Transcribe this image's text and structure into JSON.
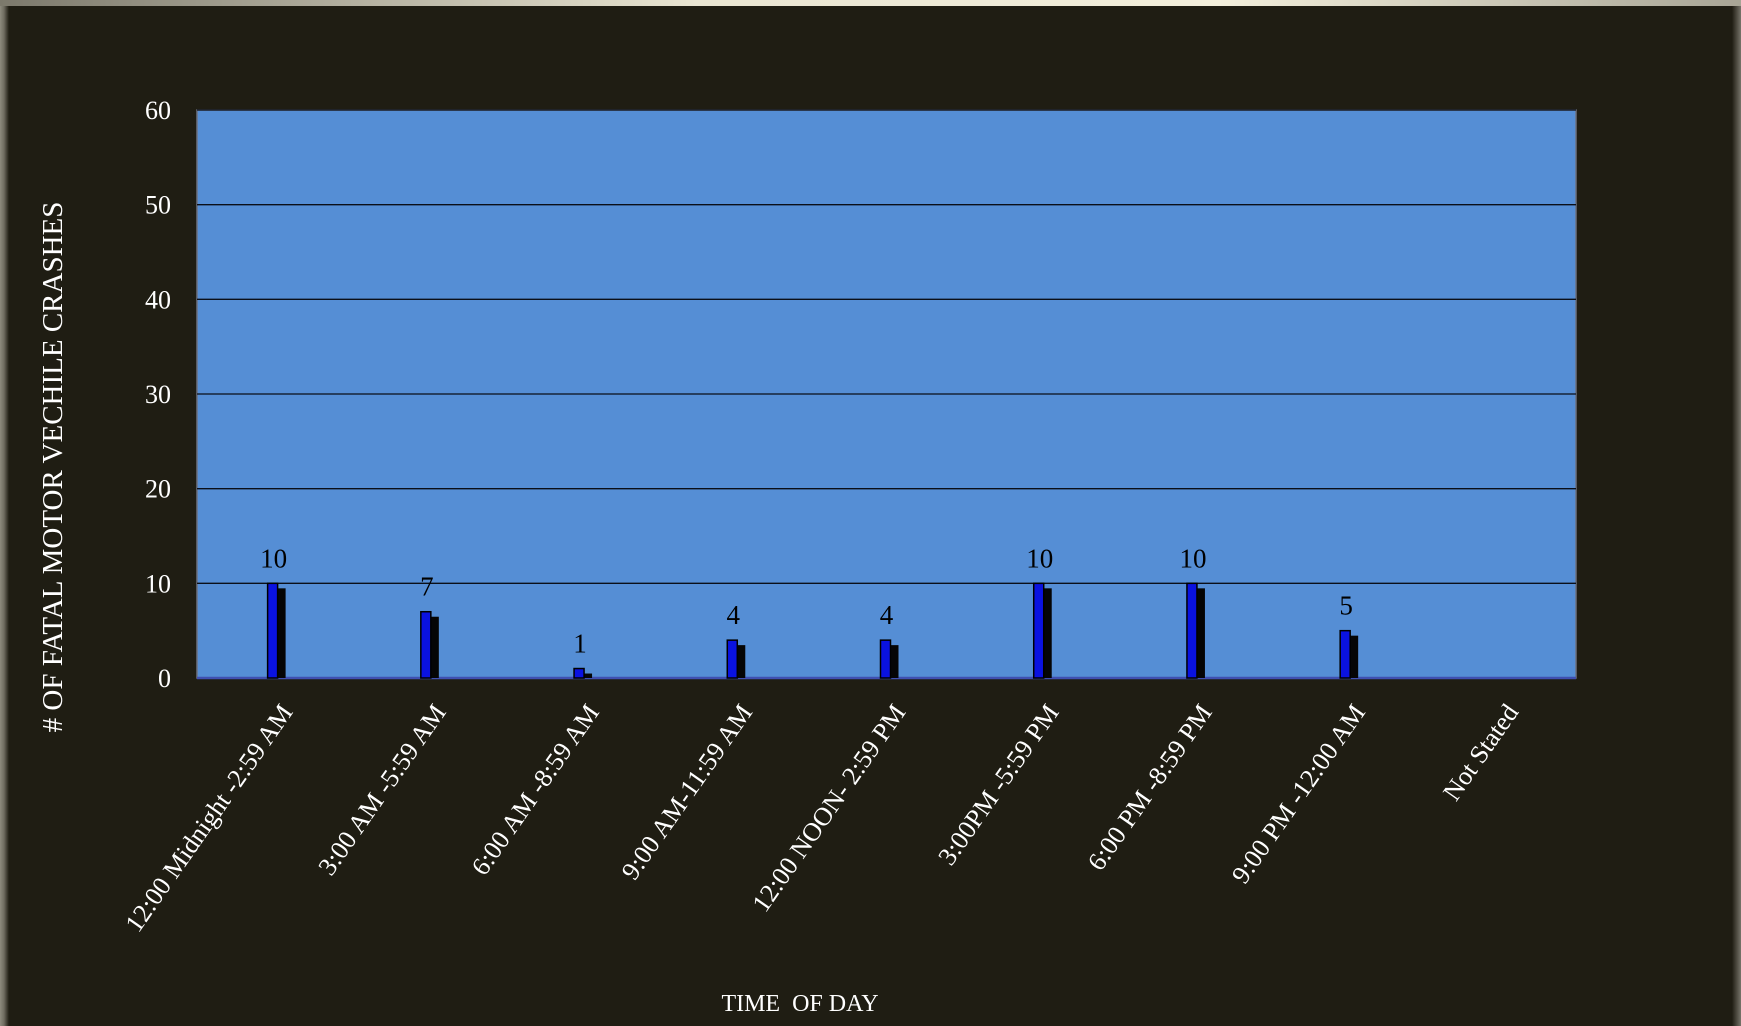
{
  "chart_data": {
    "type": "bar",
    "title": "",
    "xlabel": "TIME  OF DAY",
    "ylabel": "# OF  FATAL MOTOR VECHILE CRASHES",
    "ylim": [
      0,
      60
    ],
    "yticks": [
      "0",
      "10",
      "20",
      "30",
      "40",
      "50",
      "60"
    ],
    "grid": true,
    "legend": "none",
    "categories": [
      "12:00 Midnight -2:59 AM",
      "3:00 AM -5:59 AM",
      "6:00 AM -8:59 AM",
      "9:00 AM-11:59 AM",
      "12:00 NOON- 2:59 PM",
      "3:00PM -5:59 PM",
      "6:00 PM -8:59 PM",
      "9:00 PM -12:00 AM",
      "Not Stated"
    ],
    "values": [
      10,
      7,
      1,
      4,
      4,
      10,
      10,
      5,
      null
    ],
    "data_labels": [
      "10",
      "7",
      "1",
      "4",
      "4",
      "10",
      "10",
      "5",
      ""
    ],
    "colors": {
      "plot_bg": "#558ed5",
      "bar": "#0a12e0",
      "bar_shadow": "#050505",
      "gridline": "#0b0f18",
      "axis_line": "#3f4fb0",
      "background": "#1f1d13"
    }
  }
}
